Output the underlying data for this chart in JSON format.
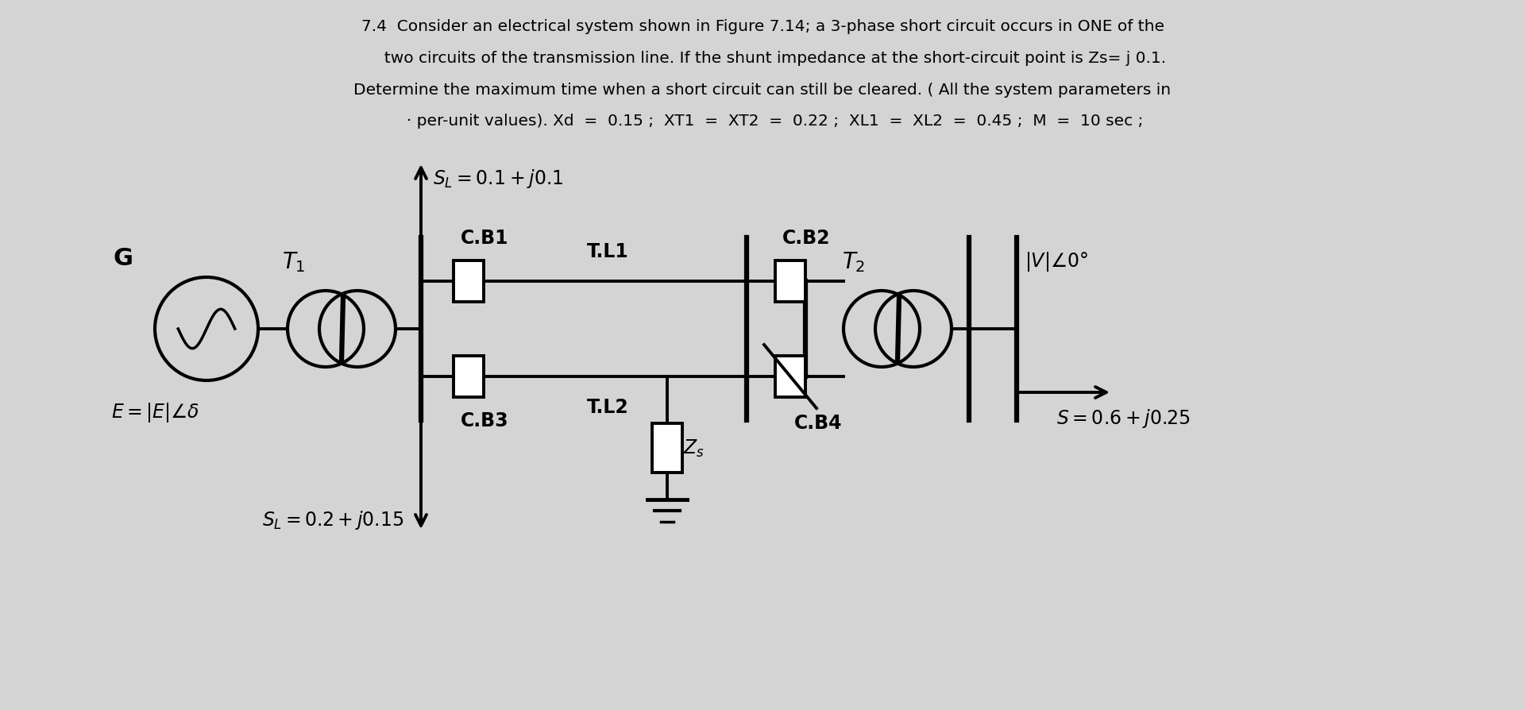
{
  "bg_color": "#d4d4d4",
  "text_color": "#000000",
  "line_color": "#000000",
  "title_lines": [
    "7.4  Consider an electrical system shown in Figure 7.14; a 3-phase short circuit occurs in ONE of the",
    "     two circuits of the transmission line. If the shunt impedance at the short-circuit point is Zs= j 0.1.",
    "Determine the maximum time when a short circuit can still be cleared. ( All the system parameters in",
    "     · per-unit values). Xd  =  0.15 ;  XT1  =  XT2  =  0.22 ;  XL1  =  XL2  =  0.45 ;  M  =  10 sec ;"
  ],
  "title_fontsize": 14.5,
  "figw": 19.2,
  "figh": 8.95
}
